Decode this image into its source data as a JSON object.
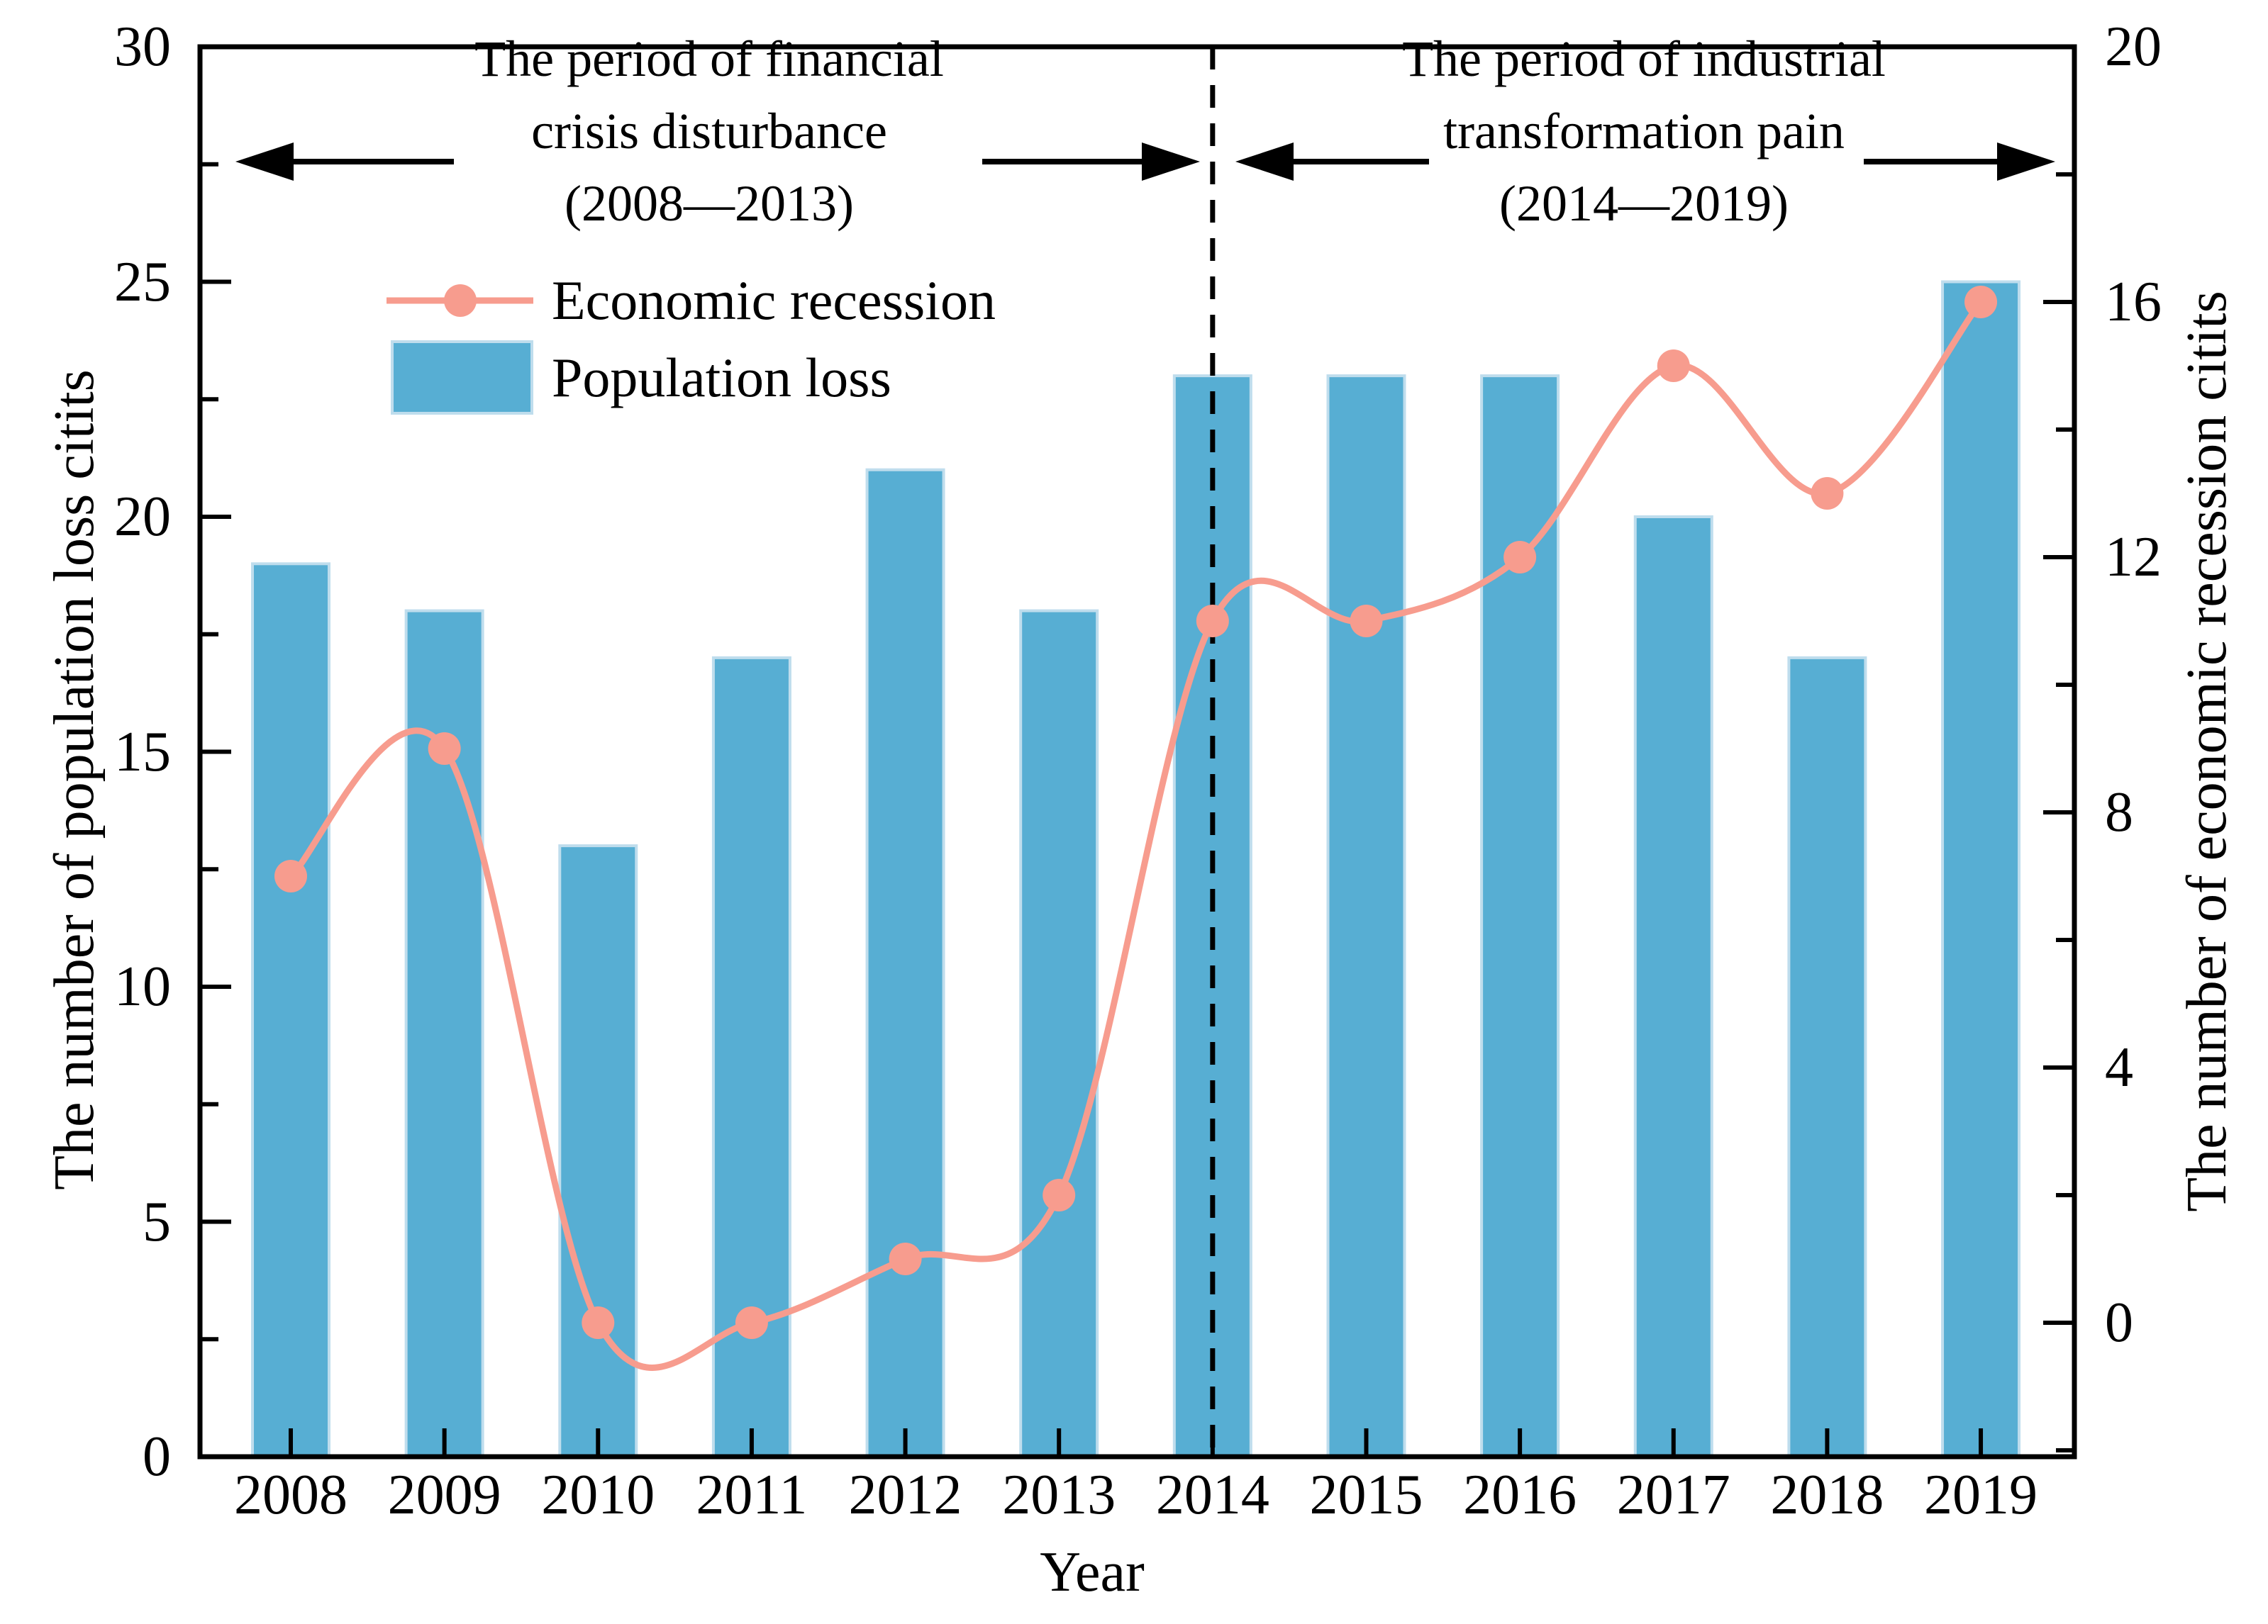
{
  "chart_data": {
    "type": "bar+line",
    "title": "",
    "categories": [
      "2008",
      "2009",
      "2010",
      "2011",
      "2012",
      "2013",
      "2014",
      "2015",
      "2016",
      "2017",
      "2018",
      "2019"
    ],
    "series": [
      {
        "name": "Population loss",
        "type": "bar",
        "axis": "left",
        "color": "#57AED3",
        "edge_color": "#BFDDED",
        "values": [
          19,
          18,
          13,
          17,
          21,
          18,
          23,
          23,
          23,
          20,
          17,
          25
        ]
      },
      {
        "name": "Economic recession",
        "type": "line",
        "axis": "right",
        "color": "#F79C8E",
        "marker": "circle",
        "values": [
          7,
          9,
          0,
          0,
          1,
          2,
          11,
          11,
          12,
          15,
          13,
          16
        ]
      }
    ],
    "left_axis": {
      "title": "The number of population loss citits",
      "range": [
        0,
        30
      ],
      "major_ticks": [
        0,
        5,
        10,
        15,
        20,
        25,
        30
      ],
      "minor_ticks": [
        2.5,
        7.5,
        12.5,
        17.5,
        22.5,
        27.5
      ]
    },
    "right_axis": {
      "title": "The number of economic recession citits",
      "range": [
        -2.1,
        20
      ],
      "major_ticks": [
        0,
        4,
        8,
        12,
        16,
        20
      ],
      "minor_ticks": [
        -2,
        2,
        6,
        10,
        14,
        18
      ]
    },
    "x_axis": {
      "title": "Year"
    },
    "divider": {
      "at_category": "2014",
      "style": "dashed",
      "color": "#000000"
    },
    "annotations": [
      {
        "id": "financial-crisis",
        "lines": [
          "The period of financial",
          "crisis disturbance",
          "(2008—2013)"
        ]
      },
      {
        "id": "industrial-transformation",
        "lines": [
          "The period of industrial",
          "transformation pain",
          "(2014—2019)"
        ]
      }
    ],
    "legend": [
      {
        "label": "Economic recession",
        "symbol": "line-marker",
        "color": "#F79C8E"
      },
      {
        "label": "Population loss",
        "symbol": "square",
        "color": "#57AED3"
      }
    ],
    "layout_hints": {
      "legend_position": "upper-left-inside",
      "grid": false,
      "frame": true,
      "ticks_direction": "in",
      "divider_full_height": true
    }
  }
}
